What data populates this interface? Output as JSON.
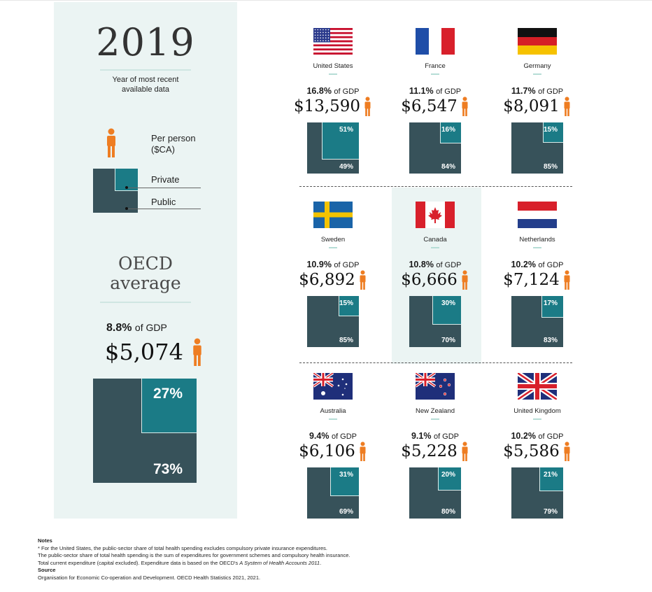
{
  "sidebar": {
    "year": "2019",
    "year_caption": "Year of most recent available data",
    "legend": {
      "per_person": "Per person ($CA)",
      "private": "Private",
      "public": "Public"
    },
    "oecd": {
      "title": "OECD average",
      "gdp_pct": "8.8%",
      "gdp_suffix": "of GDP",
      "cost": "$5,074",
      "private_label": "27%",
      "public_label": "73%",
      "private_share": 27
    }
  },
  "countries": [
    {
      "name": "United States",
      "gdp_pct": "16.8%",
      "cost": "$13,590",
      "private_label": "51%",
      "public_label": "49%",
      "flag": "us-flag"
    },
    {
      "name": "France",
      "gdp_pct": "11.1%",
      "cost": "$6,547",
      "private_label": "16%",
      "public_label": "84%",
      "flag": "france-flag"
    },
    {
      "name": "Germany",
      "gdp_pct": "11.7%",
      "cost": "$8,091",
      "private_label": "15%",
      "public_label": "85%",
      "flag": "germany-flag"
    },
    {
      "name": "Sweden",
      "gdp_pct": "10.9%",
      "cost": "$6,892",
      "private_label": "15%",
      "public_label": "85%",
      "flag": "sweden-flag"
    },
    {
      "name": "Canada",
      "gdp_pct": "10.8%",
      "cost": "$6,666",
      "private_label": "30%",
      "public_label": "70%",
      "flag": "canada-flag"
    },
    {
      "name": "Netherlands",
      "gdp_pct": "10.2%",
      "cost": "$7,124",
      "private_label": "17%",
      "public_label": "83%",
      "flag": "netherlands-flag"
    },
    {
      "name": "Australia",
      "gdp_pct": "9.4%",
      "cost": "$6,106",
      "private_label": "31%",
      "public_label": "69%",
      "flag": "australia-flag"
    },
    {
      "name": "New Zealand",
      "gdp_pct": "9.1%",
      "cost": "$5,228",
      "private_label": "20%",
      "public_label": "80%",
      "flag": "new-zealand-flag"
    },
    {
      "name": "United Kingdom",
      "gdp_pct": "10.2%",
      "cost": "$5,586",
      "private_label": "21%",
      "public_label": "79%",
      "flag": "uk-flag"
    }
  ],
  "gdp_suffix": "of GDP",
  "colors": {
    "public": "#37525a",
    "private": "#1b7b86",
    "person": "#ee7d22",
    "highlight": "#ebf4f3"
  },
  "notes": {
    "heading": "Notes",
    "lines": [
      "* For the United States, the public-sector share of total health spending excludes compulsory private insurance expenditures.",
      "The public-sector share of total health spending is the sum of expenditures for government schemes and compulsory health insurance.",
      "Total current expenditure (capital excluded). Expenditure data is based on the OECD's "
    ],
    "italic_ref": "A System of Health Accounts 2011",
    "italic_ref_end": ".",
    "source_heading": "Source",
    "source": "Organisation for Economic Co-operation and Development. OECD Health Statistics 2021, 2021."
  },
  "chart_data": {
    "type": "table",
    "columns": [
      "Country",
      "Health spending (% of GDP)",
      "Per person ($CA)",
      "Private share (%)",
      "Public share (%)"
    ],
    "rows": [
      [
        "United States",
        16.8,
        13590,
        51,
        49
      ],
      [
        "France",
        11.1,
        6547,
        16,
        84
      ],
      [
        "Germany",
        11.7,
        8091,
        15,
        85
      ],
      [
        "Sweden",
        10.9,
        6892,
        15,
        85
      ],
      [
        "Canada",
        10.8,
        6666,
        30,
        70
      ],
      [
        "Netherlands",
        10.2,
        7124,
        17,
        83
      ],
      [
        "Australia",
        9.4,
        6106,
        31,
        69
      ],
      [
        "New Zealand",
        9.1,
        5228,
        20,
        80
      ],
      [
        "United Kingdom",
        10.2,
        5586,
        21,
        79
      ],
      [
        "OECD average",
        8.8,
        5074,
        27,
        73
      ]
    ]
  }
}
